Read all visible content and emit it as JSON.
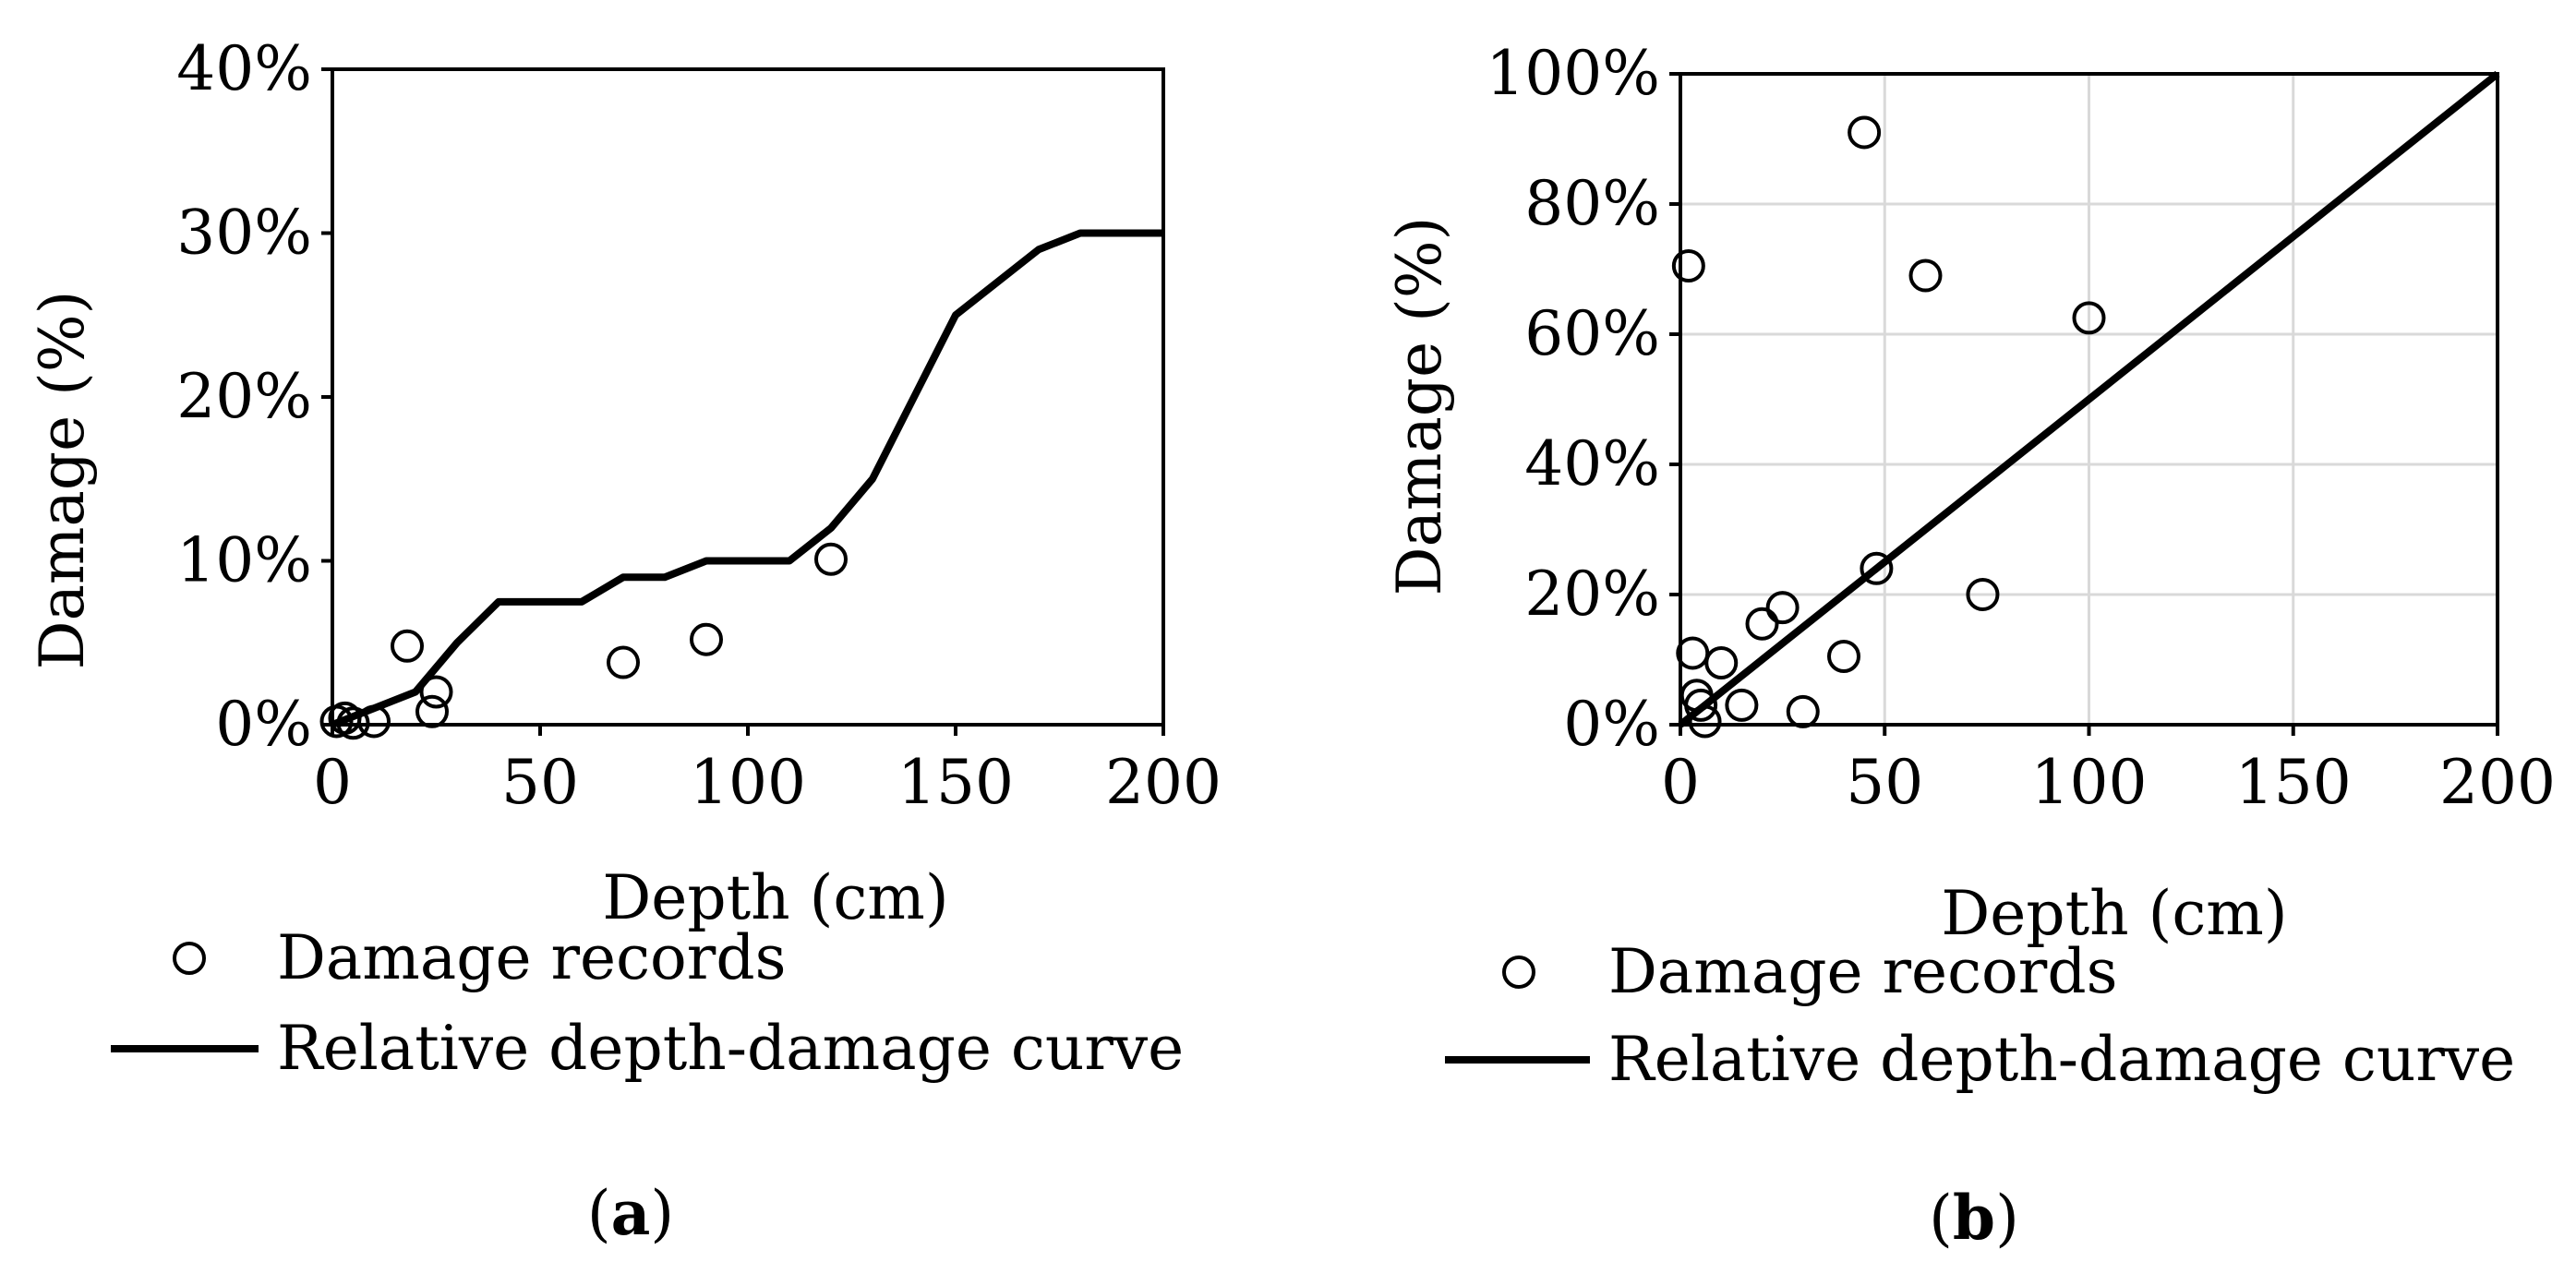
{
  "chart_data": [
    {
      "type": "scatter+line",
      "panel_label": "a",
      "xlabel": "Depth (cm)",
      "ylabel": "Damage (%)",
      "xlim": [
        0,
        200
      ],
      "ylim": [
        0,
        40
      ],
      "x_ticks": [
        0,
        50,
        100,
        150,
        200
      ],
      "y_ticks": [
        0,
        10,
        20,
        30,
        40
      ],
      "y_tick_suffix": "%",
      "grid": false,
      "legend_position": "bottom",
      "series": [
        {
          "name": "Damage records",
          "kind": "scatter",
          "marker": "open-circle",
          "points": [
            [
              1,
              0.2
            ],
            [
              3,
              0.4
            ],
            [
              5,
              0.1
            ],
            [
              10,
              0.2
            ],
            [
              18,
              4.8
            ],
            [
              24,
              0.8
            ],
            [
              25,
              2.0
            ],
            [
              70,
              3.8
            ],
            [
              90,
              5.2
            ],
            [
              120,
              10.1
            ]
          ]
        },
        {
          "name": "Relative depth-damage curve",
          "kind": "line",
          "points": [
            [
              0,
              0
            ],
            [
              10,
              1
            ],
            [
              20,
              2
            ],
            [
              30,
              5
            ],
            [
              40,
              7.5
            ],
            [
              60,
              7.5
            ],
            [
              70,
              9
            ],
            [
              80,
              9
            ],
            [
              90,
              10
            ],
            [
              110,
              10
            ],
            [
              120,
              12
            ],
            [
              130,
              15
            ],
            [
              140,
              20
            ],
            [
              150,
              25
            ],
            [
              170,
              29
            ],
            [
              180,
              30
            ],
            [
              200,
              30
            ]
          ]
        }
      ]
    },
    {
      "type": "scatter+line",
      "panel_label": "b",
      "xlabel": "Depth (cm)",
      "ylabel": "Damage (%)",
      "xlim": [
        0,
        200
      ],
      "ylim": [
        0,
        100
      ],
      "x_ticks": [
        0,
        50,
        100,
        150,
        200
      ],
      "y_ticks": [
        0,
        20,
        40,
        60,
        80,
        100
      ],
      "y_tick_suffix": "%",
      "grid": true,
      "legend_position": "bottom",
      "series": [
        {
          "name": "Damage records",
          "kind": "scatter",
          "marker": "open-circle",
          "points": [
            [
              2,
              70.5
            ],
            [
              45,
              91
            ],
            [
              60,
              69
            ],
            [
              100,
              62.5
            ],
            [
              48,
              24
            ],
            [
              74,
              20
            ],
            [
              3,
              11
            ],
            [
              10,
              9.5
            ],
            [
              20,
              15.5
            ],
            [
              25,
              18
            ],
            [
              40,
              10.5
            ],
            [
              4,
              4.5
            ],
            [
              5,
              3
            ],
            [
              15,
              3
            ],
            [
              30,
              2
            ],
            [
              6,
              0.5
            ]
          ]
        },
        {
          "name": "Relative depth-damage curve",
          "kind": "line",
          "points": [
            [
              0,
              0
            ],
            [
              200,
              100
            ]
          ]
        }
      ]
    }
  ]
}
